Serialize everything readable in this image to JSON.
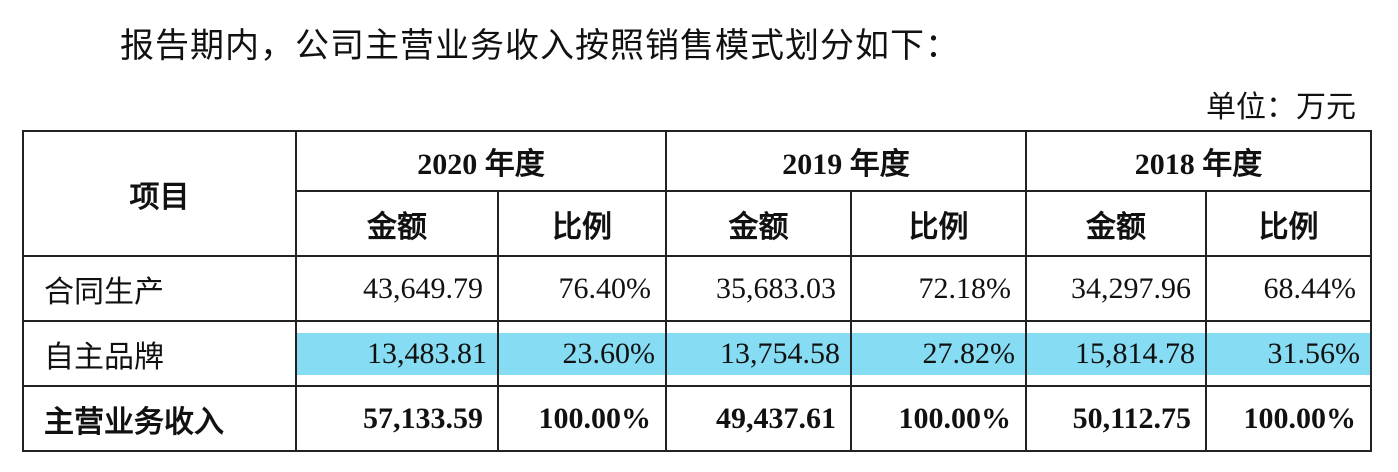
{
  "intro": "报告期内，公司主营业务收入按照销售模式划分如下：",
  "unit": "单位：万元",
  "table": {
    "item_header": "项目",
    "years": [
      "2020 年度",
      "2019 年度",
      "2018 年度"
    ],
    "subheaders": [
      "金额",
      "比例",
      "金额",
      "比例",
      "金额",
      "比例"
    ],
    "rows": [
      [
        "合同生产",
        "43,649.79",
        "76.40%",
        "35,683.03",
        "72.18%",
        "34,297.96",
        "68.44%"
      ],
      [
        "自主品牌",
        "13,483.81",
        "23.60%",
        "13,754.58",
        "27.82%",
        "15,814.78",
        "31.56%"
      ],
      [
        "主营业务收入",
        "57,133.59",
        "100.00%",
        "49,437.61",
        "100.00%",
        "50,112.75",
        "100.00%"
      ]
    ]
  }
}
